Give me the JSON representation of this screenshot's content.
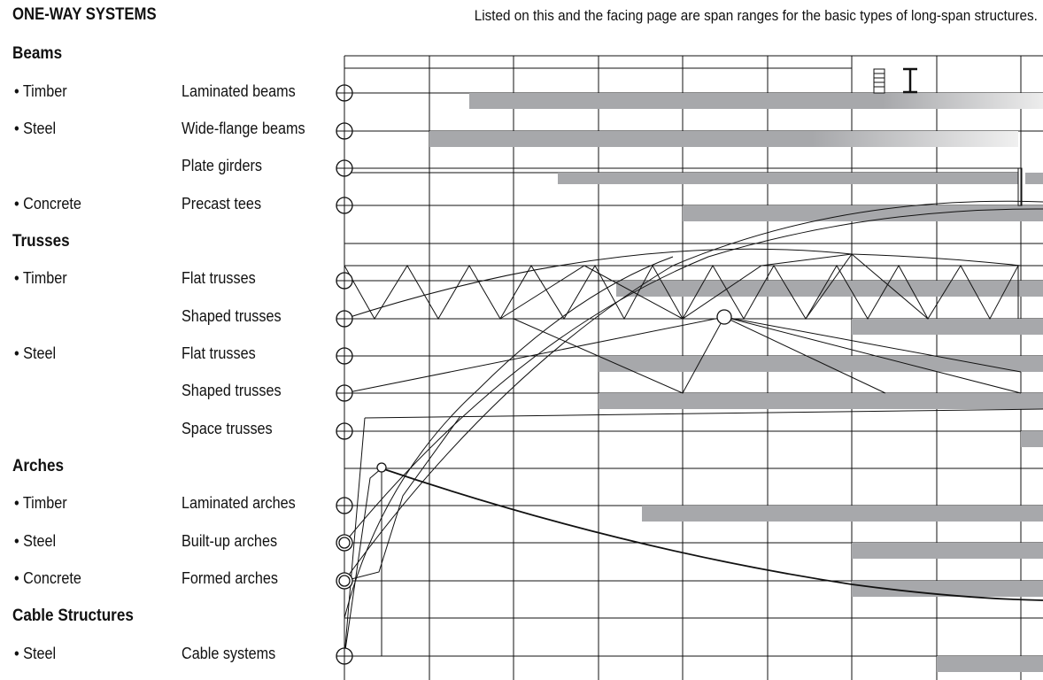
{
  "header": {
    "title": "ONE-WAY SYSTEMS",
    "intro": "Listed on this and the facing page are span ranges for the basic types of long-span structures."
  },
  "groups": [
    {
      "heading": "Beams"
    },
    {
      "heading": "Trusses"
    },
    {
      "heading": "Arches"
    },
    {
      "heading": "Cable Structures"
    }
  ],
  "rows": [
    {
      "material": "• Timber",
      "system": "Laminated beams"
    },
    {
      "material": "• Steel",
      "system": "Wide-flange beams"
    },
    {
      "material": "",
      "system": "Plate girders"
    },
    {
      "material": "• Concrete",
      "system": "Precast tees"
    },
    {
      "material": "• Timber",
      "system": "Flat trusses"
    },
    {
      "material": "",
      "system": "Shaped trusses"
    },
    {
      "material": "• Steel",
      "system": "Flat trusses"
    },
    {
      "material": "",
      "system": "Shaped trusses"
    },
    {
      "material": "",
      "system": "Space trusses"
    },
    {
      "material": "• Timber",
      "system": "Laminated arches"
    },
    {
      "material": "• Steel",
      "system": "Built-up arches"
    },
    {
      "material": "• Concrete",
      "system": "Formed arches"
    },
    {
      "material": "• Steel",
      "system": "Cable systems"
    }
  ],
  "colors": {
    "bar": "#a7a8ab",
    "line": "#111111"
  }
}
